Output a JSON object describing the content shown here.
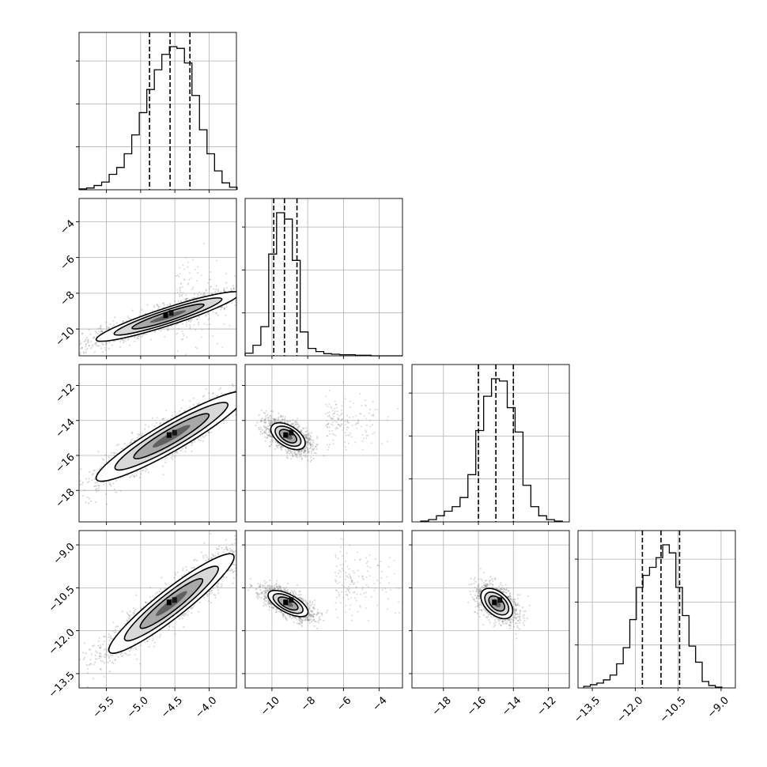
{
  "figure": {
    "type": "corner-plot"
  },
  "chart_data": {
    "type": "corner",
    "grid": true,
    "quantile_style": "dashed",
    "params": [
      {
        "range": [
          -5.9,
          -3.6
        ],
        "ticks": [
          -5.5,
          -5.0,
          -4.5,
          -4.0
        ],
        "tick_labels": [
          "−5.5",
          "−5.0",
          "−4.5",
          "−4.0"
        ],
        "quantiles": [
          -4.87,
          -4.57,
          -4.28
        ],
        "mean": -4.55,
        "sd": 0.3,
        "hist": {
          "edges": [
            -5.9,
            -5.79,
            -5.68,
            -5.57,
            -5.46,
            -5.35,
            -5.24,
            -5.13,
            -5.02,
            -4.91,
            -4.8,
            -4.69,
            -4.58,
            -4.47,
            -4.36,
            -4.25,
            -4.14,
            -4.03,
            -3.92,
            -3.81,
            -3.7,
            -3.59
          ],
          "counts": [
            1,
            2,
            5,
            9,
            18,
            26,
            42,
            64,
            90,
            117,
            140,
            158,
            167,
            165,
            148,
            110,
            70,
            42,
            22,
            8,
            3
          ]
        }
      },
      {
        "range": [
          -11.5,
          -2.7
        ],
        "ticks": [
          -10,
          -8,
          -6,
          -4
        ],
        "tick_labels": [
          "−10",
          "−8",
          "−6",
          "−4"
        ],
        "quantiles": [
          -9.9,
          -9.3,
          -8.6
        ],
        "mean": -9.2,
        "sd": 0.6,
        "hist": {
          "edges": [
            -11.5,
            -11.06,
            -10.62,
            -10.18,
            -9.74,
            -9.3,
            -8.86,
            -8.42,
            -7.98,
            -7.54,
            -7.1,
            -6.66,
            -6.22,
            -5.78,
            -5.34,
            -4.9,
            -4.46,
            -4.02,
            -3.58,
            -3.14,
            -2.7
          ],
          "counts": [
            5,
            20,
            55,
            192,
            270,
            258,
            180,
            45,
            14,
            8,
            4,
            3,
            2,
            2,
            1,
            1,
            0,
            0,
            0,
            0
          ]
        }
      },
      {
        "range": [
          -19.8,
          -10.8
        ],
        "ticks": [
          -18,
          -16,
          -14,
          -12
        ],
        "tick_labels": [
          "−18",
          "−16",
          "−14",
          "−12"
        ],
        "quantiles": [
          -16.0,
          -15.0,
          -14.0
        ],
        "mean": -14.95,
        "sd": 1.0,
        "hist": {
          "edges": [
            -19.3,
            -18.85,
            -18.4,
            -17.95,
            -17.5,
            -17.05,
            -16.6,
            -16.15,
            -15.7,
            -15.25,
            -14.8,
            -14.35,
            -13.9,
            -13.45,
            -13.0,
            -12.55,
            -12.1,
            -11.65,
            -11.2
          ],
          "counts": [
            1,
            3,
            8,
            14,
            20,
            32,
            62,
            120,
            165,
            188,
            185,
            150,
            118,
            48,
            20,
            8,
            3,
            1
          ]
        }
      },
      {
        "range": [
          -14.0,
          -8.5
        ],
        "ticks": [
          -13.5,
          -12.0,
          -10.5,
          -9.0
        ],
        "tick_labels": [
          "−13.5",
          "−12.0",
          "−10.5",
          "−9.0"
        ],
        "quantiles": [
          -11.75,
          -11.1,
          -10.45
        ],
        "mean": -11.1,
        "sd": 0.65,
        "hist": {
          "edges": [
            -13.8,
            -13.57,
            -13.34,
            -13.11,
            -12.88,
            -12.65,
            -12.42,
            -12.19,
            -11.96,
            -11.73,
            -11.5,
            -11.27,
            -11.04,
            -10.81,
            -10.58,
            -10.35,
            -10.12,
            -9.89,
            -9.66,
            -9.43,
            -9.2,
            -8.97
          ],
          "counts": [
            2,
            4,
            6,
            10,
            16,
            30,
            50,
            85,
            125,
            140,
            150,
            162,
            178,
            168,
            125,
            90,
            52,
            32,
            8,
            3,
            1
          ]
        }
      }
    ],
    "pairs": [
      {
        "x": 0,
        "y": 1,
        "centre": [
          -4.6,
          -9.3
        ],
        "primary_sd": [
          0.48,
          0.45
        ],
        "angle_deg": 18,
        "tail": {
          "from": [
            -4.5,
            -8.5
          ],
          "spread": [
            0.5,
            1.2
          ]
        }
      },
      {
        "x": 0,
        "y": 2,
        "centre": [
          -4.55,
          -14.9
        ],
        "primary_sd": [
          0.55,
          0.75
        ],
        "angle_deg": 30
      },
      {
        "x": 1,
        "y": 2,
        "centre": [
          -9.1,
          -14.9
        ],
        "primary_sd": [
          0.25,
          1.0
        ],
        "angle_deg": 58,
        "tail": {
          "from": [
            -7.0,
            -14.0
          ],
          "spread": [
            1.5,
            0.7
          ]
        }
      },
      {
        "x": 0,
        "y": 3,
        "centre": [
          -4.55,
          -11.05
        ],
        "primary_sd": [
          0.5,
          0.45
        ],
        "angle_deg": 38
      },
      {
        "x": 1,
        "y": 3,
        "centre": [
          -9.1,
          -11.05
        ],
        "primary_sd": [
          0.22,
          0.7
        ],
        "angle_deg": 62,
        "tail": {
          "from": [
            -6.5,
            -10.3
          ],
          "spread": [
            1.6,
            0.6
          ]
        }
      },
      {
        "x": 2,
        "y": 3,
        "centre": [
          -14.95,
          -11.05
        ],
        "primary_sd": [
          0.28,
          0.6
        ],
        "angle_deg": 48
      }
    ]
  }
}
